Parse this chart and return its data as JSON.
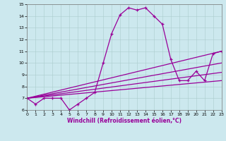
{
  "xlabel": "Windchill (Refroidissement éolien,°C)",
  "bg_color": "#cce8ee",
  "line_color": "#990099",
  "xlim": [
    0,
    23
  ],
  "ylim": [
    6,
    15
  ],
  "xticks": [
    0,
    1,
    2,
    3,
    4,
    5,
    6,
    7,
    8,
    9,
    10,
    11,
    12,
    13,
    14,
    15,
    16,
    17,
    18,
    19,
    20,
    21,
    22,
    23
  ],
  "yticks": [
    6,
    7,
    8,
    9,
    10,
    11,
    12,
    13,
    14,
    15
  ],
  "main_x": [
    0,
    1,
    2,
    3,
    4,
    5,
    6,
    7,
    8,
    9,
    10,
    11,
    12,
    13,
    14,
    15,
    16,
    17,
    18,
    19,
    20,
    21,
    22,
    23
  ],
  "main_y": [
    7.0,
    6.5,
    7.0,
    7.0,
    7.0,
    6.0,
    6.5,
    7.0,
    7.5,
    10.0,
    12.5,
    14.1,
    14.7,
    14.5,
    14.7,
    14.0,
    13.3,
    10.3,
    8.5,
    8.5,
    9.3,
    8.5,
    10.8,
    11.0
  ],
  "line2_x": [
    0,
    23
  ],
  "line2_y": [
    7.0,
    11.0
  ],
  "line3_x": [
    0,
    23
  ],
  "line3_y": [
    7.0,
    10.0
  ],
  "line4_x": [
    0,
    23
  ],
  "line4_y": [
    7.0,
    9.2
  ],
  "line5_x": [
    0,
    23
  ],
  "line5_y": [
    7.0,
    8.5
  ]
}
